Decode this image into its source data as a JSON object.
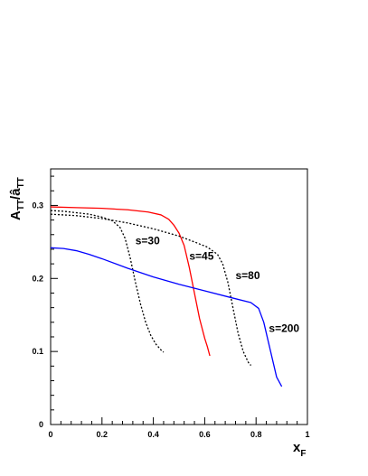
{
  "chart_data": {
    "type": "line",
    "title": "",
    "xlabel": {
      "main": "x",
      "sub": "F"
    },
    "ylabel": {
      "main": "A",
      "sub": "TT",
      "sep": "/",
      "main2": "â",
      "sub2": "TT"
    },
    "xlim": [
      0,
      1
    ],
    "ylim": [
      0,
      0.35
    ],
    "x_ticks": [
      0,
      0.2,
      0.4,
      0.6,
      0.8,
      1
    ],
    "x_tick_labels": [
      "0",
      "0.2",
      "0.4",
      "0.6",
      "0.8",
      "1"
    ],
    "y_ticks": [
      0,
      0.1,
      0.2,
      0.3
    ],
    "y_tick_labels": [
      "0",
      "0.1",
      "0.2",
      "0.3"
    ],
    "grid": false,
    "series": [
      {
        "name": "s=30",
        "color": "#000000",
        "style": "dotted",
        "label_at": [
          0.33,
          0.247
        ],
        "points": [
          [
            0,
            0.293
          ],
          [
            0.05,
            0.292
          ],
          [
            0.1,
            0.29
          ],
          [
            0.15,
            0.288
          ],
          [
            0.2,
            0.284
          ],
          [
            0.24,
            0.279
          ],
          [
            0.27,
            0.27
          ],
          [
            0.29,
            0.255
          ],
          [
            0.31,
            0.228
          ],
          [
            0.33,
            0.195
          ],
          [
            0.35,
            0.165
          ],
          [
            0.37,
            0.14
          ],
          [
            0.39,
            0.122
          ],
          [
            0.41,
            0.11
          ],
          [
            0.43,
            0.102
          ],
          [
            0.44,
            0.099
          ]
        ]
      },
      {
        "name": "s=45",
        "color": "#ff0000",
        "style": "solid",
        "label_at": [
          0.54,
          0.226
        ],
        "points": [
          [
            0,
            0.298
          ],
          [
            0.1,
            0.297
          ],
          [
            0.2,
            0.296
          ],
          [
            0.3,
            0.294
          ],
          [
            0.38,
            0.291
          ],
          [
            0.43,
            0.287
          ],
          [
            0.46,
            0.281
          ],
          [
            0.48,
            0.273
          ],
          [
            0.5,
            0.262
          ],
          [
            0.52,
            0.245
          ],
          [
            0.54,
            0.215
          ],
          [
            0.56,
            0.18
          ],
          [
            0.58,
            0.145
          ],
          [
            0.6,
            0.118
          ],
          [
            0.61,
            0.107
          ],
          [
            0.62,
            0.094
          ]
        ]
      },
      {
        "name": "s=80",
        "color": "#000000",
        "style": "dotted",
        "label_at": [
          0.72,
          0.199
        ],
        "points": [
          [
            0,
            0.288
          ],
          [
            0.1,
            0.286
          ],
          [
            0.2,
            0.282
          ],
          [
            0.3,
            0.276
          ],
          [
            0.4,
            0.268
          ],
          [
            0.5,
            0.258
          ],
          [
            0.56,
            0.25
          ],
          [
            0.61,
            0.243
          ],
          [
            0.65,
            0.233
          ],
          [
            0.67,
            0.22
          ],
          [
            0.69,
            0.195
          ],
          [
            0.71,
            0.16
          ],
          [
            0.73,
            0.125
          ],
          [
            0.75,
            0.1
          ],
          [
            0.77,
            0.085
          ],
          [
            0.78,
            0.081
          ]
        ]
      },
      {
        "name": "s=200",
        "color": "#0000ff",
        "style": "solid",
        "label_at": [
          0.85,
          0.127
        ],
        "points": [
          [
            0,
            0.242
          ],
          [
            0.05,
            0.241
          ],
          [
            0.1,
            0.238
          ],
          [
            0.15,
            0.233
          ],
          [
            0.2,
            0.227
          ],
          [
            0.3,
            0.214
          ],
          [
            0.4,
            0.202
          ],
          [
            0.5,
            0.192
          ],
          [
            0.6,
            0.183
          ],
          [
            0.7,
            0.174
          ],
          [
            0.78,
            0.167
          ],
          [
            0.81,
            0.159
          ],
          [
            0.83,
            0.14
          ],
          [
            0.85,
            0.11
          ],
          [
            0.87,
            0.08
          ],
          [
            0.88,
            0.065
          ],
          [
            0.9,
            0.052
          ]
        ]
      }
    ]
  }
}
